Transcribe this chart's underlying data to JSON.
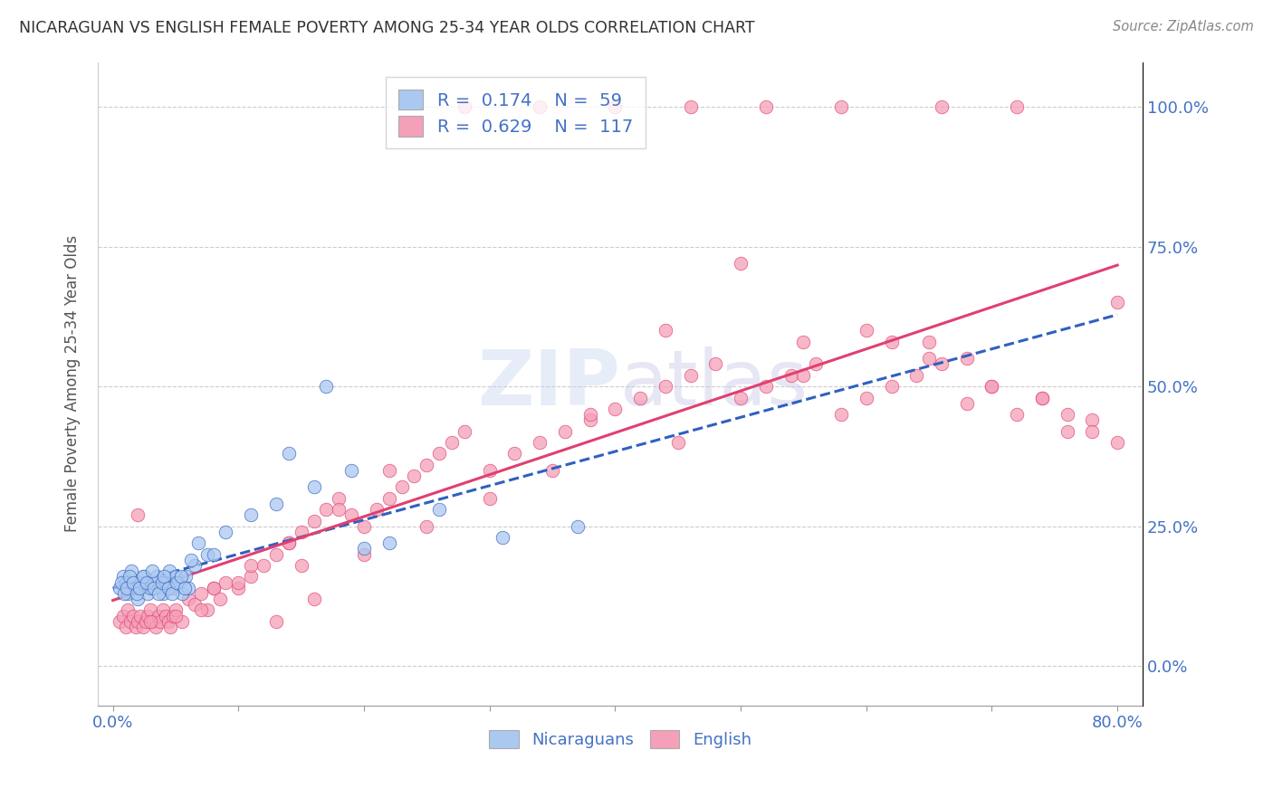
{
  "title": "NICARAGUAN VS ENGLISH FEMALE POVERTY AMONG 25-34 YEAR OLDS CORRELATION CHART",
  "source": "Source: ZipAtlas.com",
  "ylabel": "Female Poverty Among 25-34 Year Olds",
  "nicaraguan_R": "0.174",
  "nicaraguan_N": "59",
  "english_R": "0.629",
  "english_N": "117",
  "nicaraguan_color": "#aac8f0",
  "english_color": "#f4a0b8",
  "nicaraguan_line_color": "#3060c0",
  "english_line_color": "#e04070",
  "xlim": [
    0.0,
    0.8
  ],
  "ylim": [
    -0.06,
    1.06
  ],
  "nic_x": [
    0.005,
    0.008,
    0.01,
    0.012,
    0.015,
    0.018,
    0.02,
    0.022,
    0.025,
    0.028,
    0.03,
    0.032,
    0.035,
    0.038,
    0.04,
    0.042,
    0.045,
    0.048,
    0.05,
    0.052,
    0.055,
    0.058,
    0.06,
    0.065,
    0.007,
    0.009,
    0.011,
    0.013,
    0.016,
    0.019,
    0.021,
    0.024,
    0.027,
    0.031,
    0.033,
    0.036,
    0.039,
    0.041,
    0.044,
    0.047,
    0.051,
    0.054,
    0.057,
    0.062,
    0.068,
    0.075,
    0.09,
    0.11,
    0.13,
    0.16,
    0.19,
    0.22,
    0.26,
    0.31,
    0.37,
    0.14,
    0.08,
    0.17,
    0.2
  ],
  "nic_y": [
    0.14,
    0.16,
    0.15,
    0.13,
    0.17,
    0.14,
    0.12,
    0.15,
    0.16,
    0.13,
    0.14,
    0.15,
    0.16,
    0.14,
    0.13,
    0.15,
    0.17,
    0.14,
    0.16,
    0.15,
    0.13,
    0.16,
    0.14,
    0.18,
    0.15,
    0.13,
    0.14,
    0.16,
    0.15,
    0.13,
    0.14,
    0.16,
    0.15,
    0.17,
    0.14,
    0.13,
    0.15,
    0.16,
    0.14,
    0.13,
    0.15,
    0.16,
    0.14,
    0.19,
    0.22,
    0.2,
    0.24,
    0.27,
    0.29,
    0.32,
    0.35,
    0.22,
    0.28,
    0.23,
    0.25,
    0.38,
    0.2,
    0.5,
    0.21
  ],
  "eng_x": [
    0.005,
    0.008,
    0.01,
    0.012,
    0.014,
    0.016,
    0.018,
    0.02,
    0.022,
    0.024,
    0.026,
    0.028,
    0.03,
    0.032,
    0.034,
    0.036,
    0.038,
    0.04,
    0.042,
    0.044,
    0.046,
    0.048,
    0.05,
    0.055,
    0.06,
    0.065,
    0.07,
    0.075,
    0.08,
    0.085,
    0.09,
    0.1,
    0.11,
    0.12,
    0.13,
    0.14,
    0.15,
    0.16,
    0.17,
    0.18,
    0.19,
    0.2,
    0.21,
    0.22,
    0.23,
    0.24,
    0.25,
    0.26,
    0.27,
    0.28,
    0.3,
    0.32,
    0.34,
    0.36,
    0.38,
    0.4,
    0.42,
    0.44,
    0.46,
    0.48,
    0.5,
    0.52,
    0.54,
    0.56,
    0.58,
    0.6,
    0.62,
    0.64,
    0.66,
    0.68,
    0.7,
    0.72,
    0.74,
    0.76,
    0.78,
    0.8,
    0.5,
    0.44,
    0.38,
    0.3,
    0.25,
    0.2,
    0.15,
    0.1,
    0.07,
    0.05,
    0.03,
    0.02,
    0.13,
    0.16,
    0.55,
    0.6,
    0.65,
    0.7,
    0.62,
    0.68,
    0.74,
    0.76,
    0.78,
    0.8,
    0.72,
    0.66,
    0.58,
    0.52,
    0.46,
    0.4,
    0.34,
    0.28,
    0.22,
    0.18,
    0.14,
    0.11,
    0.08,
    0.35,
    0.45,
    0.55,
    0.65
  ],
  "eng_y": [
    0.08,
    0.09,
    0.07,
    0.1,
    0.08,
    0.09,
    0.07,
    0.08,
    0.09,
    0.07,
    0.08,
    0.09,
    0.1,
    0.08,
    0.07,
    0.09,
    0.08,
    0.1,
    0.09,
    0.08,
    0.07,
    0.09,
    0.1,
    0.08,
    0.12,
    0.11,
    0.13,
    0.1,
    0.14,
    0.12,
    0.15,
    0.14,
    0.16,
    0.18,
    0.2,
    0.22,
    0.24,
    0.26,
    0.28,
    0.3,
    0.27,
    0.25,
    0.28,
    0.3,
    0.32,
    0.34,
    0.36,
    0.38,
    0.4,
    0.42,
    0.35,
    0.38,
    0.4,
    0.42,
    0.44,
    0.46,
    0.48,
    0.5,
    0.52,
    0.54,
    0.48,
    0.5,
    0.52,
    0.54,
    0.45,
    0.48,
    0.5,
    0.52,
    0.54,
    0.47,
    0.5,
    0.45,
    0.48,
    0.42,
    0.44,
    0.65,
    0.72,
    0.6,
    0.45,
    0.3,
    0.25,
    0.2,
    0.18,
    0.15,
    0.1,
    0.09,
    0.08,
    0.27,
    0.08,
    0.12,
    0.58,
    0.6,
    0.55,
    0.5,
    0.58,
    0.55,
    0.48,
    0.45,
    0.42,
    0.4,
    1.0,
    1.0,
    1.0,
    1.0,
    1.0,
    1.0,
    1.0,
    1.0,
    0.35,
    0.28,
    0.22,
    0.18,
    0.14,
    0.35,
    0.4,
    0.52,
    0.58
  ]
}
